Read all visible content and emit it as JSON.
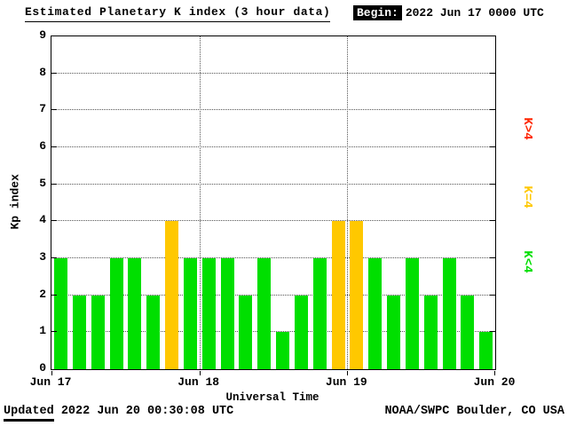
{
  "title": "Estimated Planetary K index (3 hour data)",
  "header": {
    "begin_label": "Begin:",
    "begin_value": "2022 Jun 17 0000 UTC"
  },
  "footer": {
    "updated_label": "Updated",
    "updated_value": " 2022 Jun 20 00:30:08 UTC",
    "credit": "NOAA/SWPC Boulder, CO USA"
  },
  "chart_data": {
    "type": "bar",
    "title": "Estimated Planetary K index (3 hour data)",
    "xlabel": "Universal Time",
    "ylabel": "Kp index",
    "ylim": [
      0,
      9
    ],
    "yticks": [
      0,
      1,
      2,
      3,
      4,
      5,
      6,
      7,
      8,
      9
    ],
    "x_tick_labels": [
      "Jun 17",
      "Jun 18",
      "Jun 19",
      "Jun 20"
    ],
    "days": [
      "Jun 17",
      "Jun 18",
      "Jun 19"
    ],
    "bin_hours": 3,
    "values": [
      3,
      2,
      2,
      3,
      3,
      2,
      4,
      3,
      3,
      3,
      2,
      3,
      1,
      2,
      3,
      4,
      4,
      3,
      2,
      3,
      2,
      3,
      2,
      1
    ],
    "colors": {
      "k_lt4": "#00df00",
      "k_eq4": "#ffc800",
      "k_gt4": "#ff2600"
    },
    "legend": [
      {
        "label": "K>4",
        "color": "#ff2600"
      },
      {
        "label": "K=4",
        "color": "#ffc800"
      },
      {
        "label": "K<4",
        "color": "#00df00"
      }
    ],
    "grid": "dotted horizontal lines at Kp 1-8; dotted vertical lines at day boundaries",
    "legend_position": "right, rotated 90deg"
  }
}
